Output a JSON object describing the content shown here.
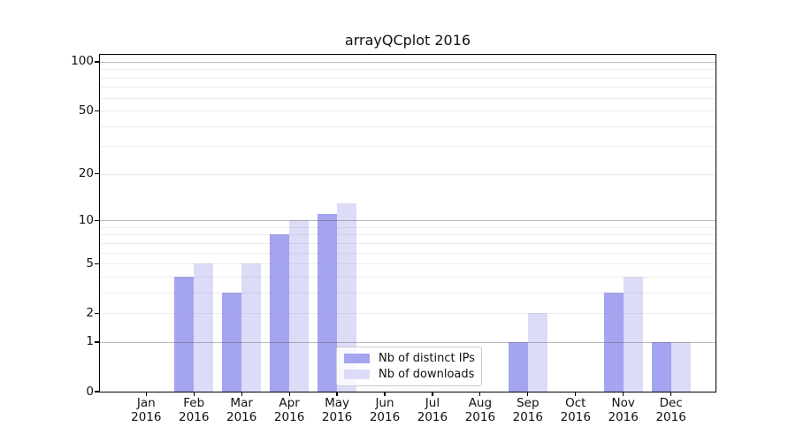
{
  "title": "arrayQCplot 2016",
  "chart_data": {
    "type": "bar",
    "title": "arrayQCplot 2016",
    "categories": [
      "Jan",
      "Feb",
      "Mar",
      "Apr",
      "May",
      "Jun",
      "Jul",
      "Aug",
      "Sep",
      "Oct",
      "Nov",
      "Dec"
    ],
    "year": "2016",
    "series": [
      {
        "name": "Nb of distinct IPs",
        "color": "#a4a4f0",
        "values": [
          0,
          4,
          3,
          8,
          11,
          0,
          0,
          0,
          1,
          0,
          3,
          1
        ]
      },
      {
        "name": "Nb of downloads",
        "color": "#dcdcf9",
        "values": [
          0,
          5,
          5,
          10,
          13,
          0,
          0,
          0,
          2,
          0,
          4,
          1
        ]
      }
    ],
    "yscale": "log1p",
    "ylim": [
      0,
      111
    ],
    "y_ticks": [
      0,
      1,
      2,
      5,
      10,
      20,
      50,
      100
    ],
    "y_gridlines_major": [
      1,
      10,
      100
    ],
    "y_gridlines_minor": [
      2,
      3,
      4,
      5,
      6,
      7,
      8,
      9,
      20,
      30,
      40,
      50,
      60,
      70,
      80,
      90
    ],
    "grid": true,
    "legend_position": "inside-bottom-center"
  }
}
